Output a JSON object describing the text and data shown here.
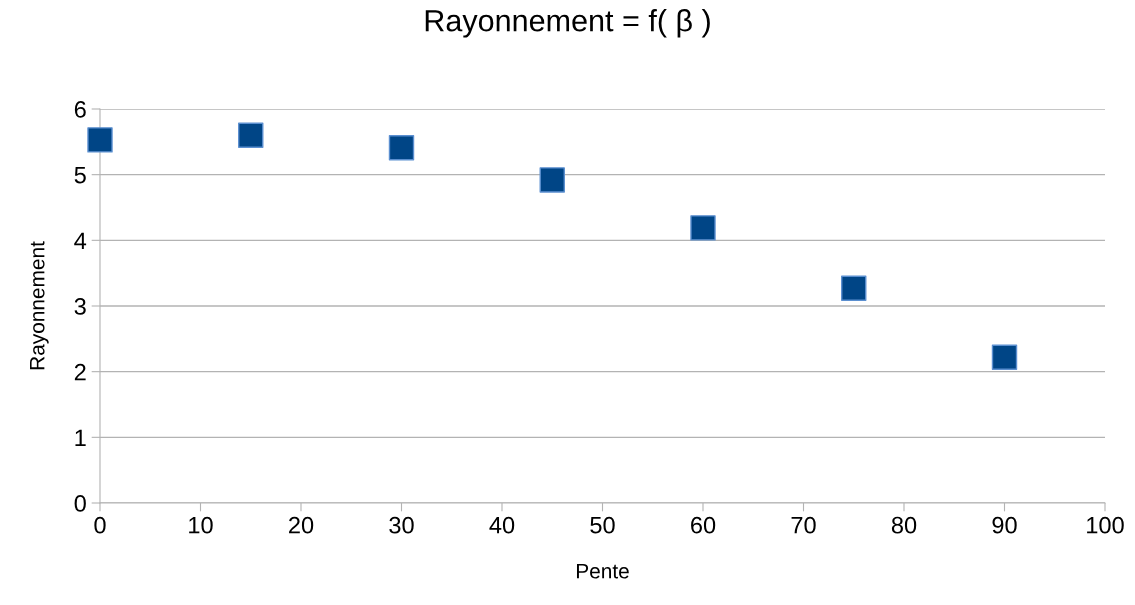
{
  "chart_data": {
    "type": "scatter",
    "title": "Rayonnement = f( β )",
    "xlabel": "Pente",
    "ylabel": "Rayonnement",
    "x": [
      0,
      15,
      30,
      45,
      60,
      75,
      90
    ],
    "series": [
      {
        "color": "#004586",
        "values": [
          5.53,
          5.6,
          5.41,
          4.92,
          4.19,
          3.27,
          2.22
        ]
      }
    ],
    "xlim": [
      0,
      100
    ],
    "xticks": [
      0,
      10,
      20,
      30,
      40,
      50,
      60,
      70,
      80,
      90,
      100
    ],
    "ylim": [
      0,
      6
    ],
    "yticks": [
      0,
      1,
      2,
      3,
      4,
      5,
      6
    ],
    "grid": "y",
    "marker": "square",
    "legend": false
  }
}
